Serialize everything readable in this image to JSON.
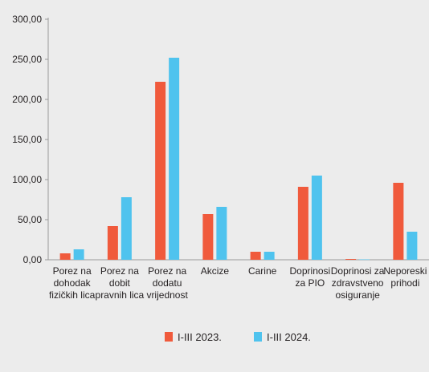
{
  "chart_data": {
    "type": "bar",
    "categories": [
      [
        "Porez na",
        "dohodak",
        "fizičkih lica"
      ],
      [
        "Porez na",
        "dobit",
        "pravnih lica"
      ],
      [
        "Porez na",
        "dodatu",
        "vrijednost"
      ],
      [
        "Akcize"
      ],
      [
        "Carine"
      ],
      [
        "Doprinosi",
        "za PIO"
      ],
      [
        "Doprinosi za",
        "zdravstveno",
        "osiguranje"
      ],
      [
        "Neporeski",
        "prihodi"
      ]
    ],
    "series": [
      {
        "name": "I-III 2023.",
        "color": "#f05a3c",
        "values": [
          8,
          42,
          222,
          57,
          10,
          91,
          1,
          96
        ]
      },
      {
        "name": "I-III 2024.",
        "color": "#4fc3ee",
        "values": [
          13,
          78,
          252,
          66,
          10,
          105,
          0.5,
          35
        ]
      }
    ],
    "ylim": [
      0,
      300
    ],
    "yticks": [
      "0,00",
      "50,00",
      "100,00",
      "150,00",
      "200,00",
      "250,00",
      "300,00"
    ],
    "ytick_values": [
      0,
      50,
      100,
      150,
      200,
      250,
      300
    ],
    "grid": false,
    "legend_position": "bottom"
  }
}
